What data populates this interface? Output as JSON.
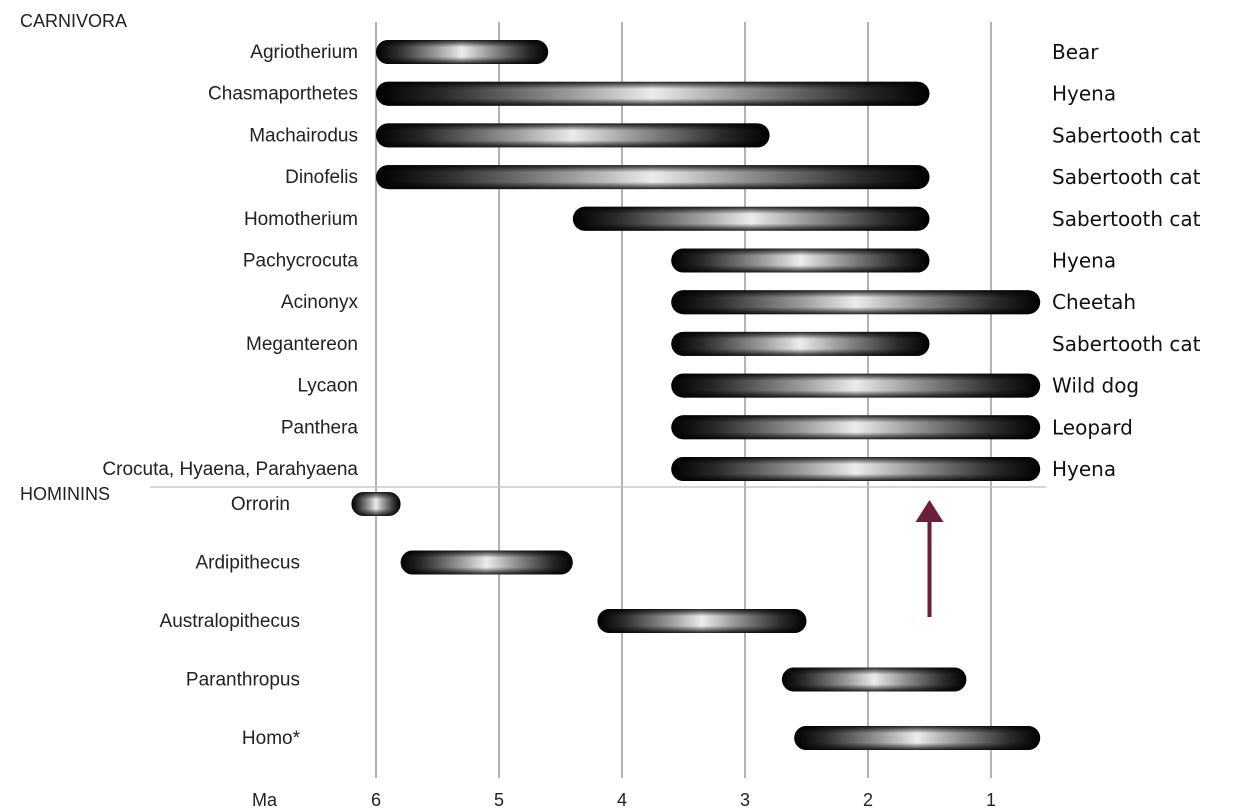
{
  "chart_data": {
    "type": "bar",
    "xlabel": "Ma",
    "xlim": [
      6.3,
      0.6
    ],
    "ticks": [
      6,
      5,
      4,
      3,
      2,
      1
    ],
    "tick_labels": [
      "6",
      "5",
      "4",
      "3",
      "2",
      "1"
    ],
    "grid": true,
    "groups": [
      {
        "name": "CARNIVORA",
        "taxa": [
          {
            "name": "Agriotherium",
            "common": "Bear",
            "start": 6.0,
            "end": 4.6
          },
          {
            "name": "Chasmaporthetes",
            "common": "Hyena",
            "start": 6.0,
            "end": 1.5
          },
          {
            "name": "Machairodus",
            "common": "Sabertooth cat",
            "start": 6.0,
            "end": 2.8
          },
          {
            "name": "Dinofelis",
            "common": "Sabertooth cat",
            "start": 6.0,
            "end": 1.5
          },
          {
            "name": "Homotherium",
            "common": "Sabertooth cat",
            "start": 4.4,
            "end": 1.5
          },
          {
            "name": "Pachycrocuta",
            "common": "Hyena",
            "start": 3.6,
            "end": 1.5
          },
          {
            "name": "Acinonyx",
            "common": "Cheetah",
            "start": 3.6,
            "end": 0.6
          },
          {
            "name": "Megantereon",
            "common": "Sabertooth cat",
            "start": 3.6,
            "end": 1.5
          },
          {
            "name": "Lycaon",
            "common": "Wild dog",
            "start": 3.6,
            "end": 0.6
          },
          {
            "name": "Panthera",
            "common": "Leopard",
            "start": 3.6,
            "end": 0.6
          },
          {
            "name": "Crocuta, Hyaena, Parahyaena",
            "common": "Hyena",
            "start": 3.6,
            "end": 0.6
          }
        ]
      },
      {
        "name": "HOMININS",
        "taxa": [
          {
            "name": "Orrorin",
            "common": "",
            "start": 6.2,
            "end": 5.8
          },
          {
            "name": "Ardipithecus",
            "common": "",
            "start": 5.8,
            "end": 4.4
          },
          {
            "name": "Australopithecus",
            "common": "",
            "start": 4.2,
            "end": 2.5
          },
          {
            "name": "Paranthropus",
            "common": "",
            "start": 2.7,
            "end": 1.2
          },
          {
            "name": "Homo*",
            "common": "",
            "start": 2.6,
            "end": 0.6
          }
        ]
      }
    ],
    "annotations": [
      {
        "type": "arrow",
        "x": 1.5,
        "direction": "up",
        "color": "#6b1f3a"
      }
    ]
  }
}
